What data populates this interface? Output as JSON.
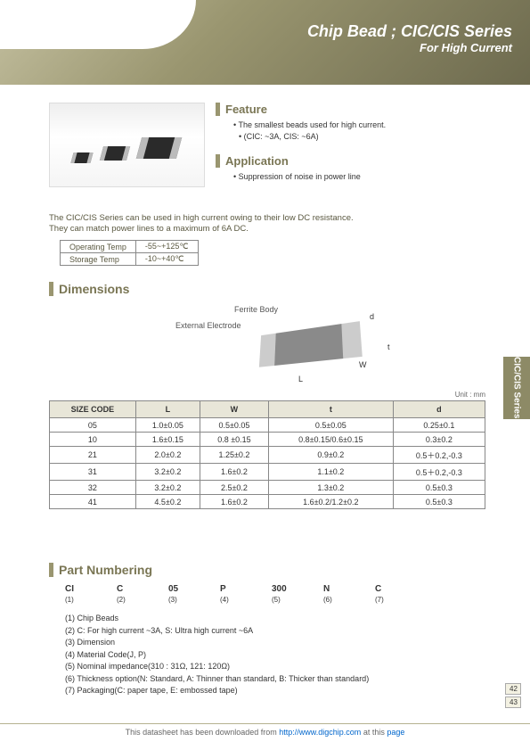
{
  "header": {
    "title": "Chip Bead ; CIC/CIS Series",
    "subtitle": "For High Current"
  },
  "feature": {
    "heading": "Feature",
    "items": [
      "The smallest beads used for high current.",
      "(CIC: ~3A, CIS: ~6A)"
    ]
  },
  "application": {
    "heading": "Application",
    "items": [
      "Suppression of noise in power line"
    ]
  },
  "intro": {
    "line1": "The CIC/CIS Series can be used in high current owing to their low DC resistance.",
    "line2": "They can match power lines to a maximum of 6A DC."
  },
  "temp_table": {
    "rows": [
      [
        "Operating Temp",
        "-55~+125℃"
      ],
      [
        "Storage Temp",
        "-10~+40℃"
      ]
    ]
  },
  "dimensions": {
    "heading": "Dimensions",
    "ferrite_label": "Ferrite Body",
    "external_label": "External Electrode",
    "labels": {
      "L": "L",
      "W": "W",
      "t": "t",
      "d": "d"
    },
    "unit": "Unit : mm",
    "columns": [
      "SIZE CODE",
      "L",
      "W",
      "t",
      "d"
    ],
    "rows": [
      [
        "05",
        "1.0±0.05",
        "0.5±0.05",
        "0.5±0.05",
        "0.25±0.1"
      ],
      [
        "10",
        "1.6±0.15",
        "0.8 ±0.15",
        "0.8±0.15/0.6±0.15",
        "0.3±0.2"
      ],
      [
        "21",
        "2.0±0.2",
        "1.25±0.2",
        "0.9±0.2",
        "0.5＋0.2,-0.3"
      ],
      [
        "31",
        "3.2±0.2",
        "1.6±0.2",
        "1.1±0.2",
        "0.5＋0.2,-0.3"
      ],
      [
        "32",
        "3.2±0.2",
        "2.5±0.2",
        "1.3±0.2",
        "0.5±0.3"
      ],
      [
        "41",
        "4.5±0.2",
        "1.6±0.2",
        "1.6±0.2/1.2±0.2",
        "0.5±0.3"
      ]
    ]
  },
  "part_numbering": {
    "heading": "Part Numbering",
    "codes": [
      "CI",
      "C",
      "05",
      "P",
      "300",
      "N",
      "C"
    ],
    "indices": [
      "(1)",
      "(2)",
      "(3)",
      "(4)",
      "(5)",
      "(6)",
      "(7)"
    ],
    "desc": [
      "(1) Chip Beads",
      "(2) C: For high current ~3A,  S: Ultra high current ~6A",
      "(3) Dimension",
      "(4) Material Code(J, P)",
      "(5) Nominal impedance(310 : 31Ω, 121: 120Ω)",
      "(6) Thickness option(N: Standard, A: Thinner than standard, B: Thicker than standard)",
      "(7) Packaging(C: paper tape, E: embossed tape)"
    ]
  },
  "side_tab": "CIC/CIS Series",
  "pages": [
    "42",
    "43"
  ],
  "footer": {
    "text_before": "This datasheet has been downloaded from ",
    "link1": "http://www.digchip.com",
    "text_mid": " at this ",
    "link2": "page"
  }
}
